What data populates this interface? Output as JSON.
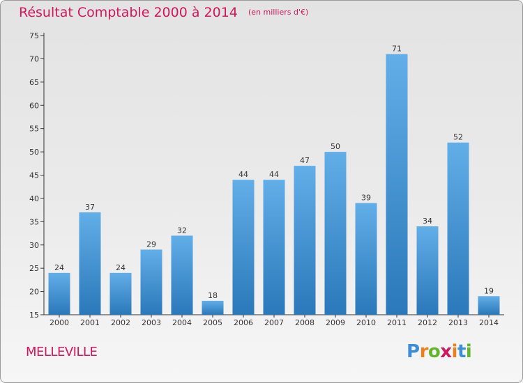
{
  "title": "Résultat Comptable 2000 à 2014",
  "subtitle": "(en milliers d'€)",
  "commune": "MELLEVILLE",
  "logo": {
    "letters": [
      "P",
      "r",
      "o",
      "x",
      "i",
      "t",
      "i"
    ],
    "colors": [
      "#3c8fd6",
      "#e8801e",
      "#63b52e",
      "#d1175d",
      "#e8801e",
      "#3c8fd6",
      "#63b52e"
    ]
  },
  "colors": {
    "title": "#d1175d",
    "bar_top": "#62aee8",
    "bar_bottom": "#2b78ba",
    "axis": "#333333"
  },
  "chart_data": {
    "type": "bar",
    "categories": [
      "2000",
      "2001",
      "2002",
      "2003",
      "2004",
      "2005",
      "2006",
      "2007",
      "2008",
      "2009",
      "2010",
      "2011",
      "2012",
      "2013",
      "2014"
    ],
    "values": [
      24,
      37,
      24,
      29,
      32,
      18,
      44,
      44,
      47,
      50,
      39,
      71,
      34,
      52,
      19
    ],
    "ylim": [
      15,
      75
    ],
    "yticks": [
      15,
      20,
      25,
      30,
      35,
      40,
      45,
      50,
      55,
      60,
      65,
      70,
      75
    ],
    "grid": false,
    "data_labels": true
  }
}
